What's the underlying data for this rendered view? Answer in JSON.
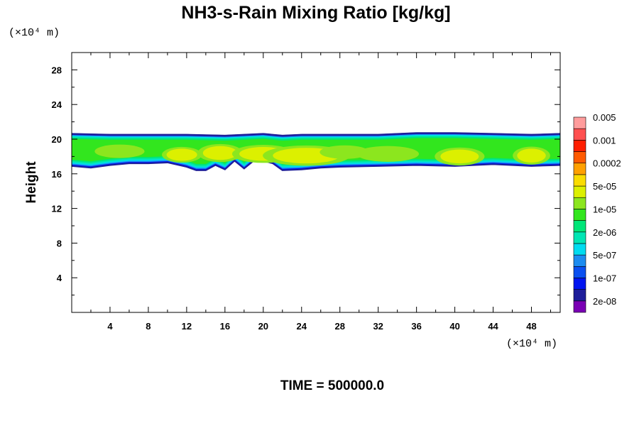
{
  "chart_data": {
    "type": "heatmap",
    "title": "NH3-s-Rain Mixing Ratio [kg/kg]",
    "ylabel": "Height",
    "xlabel": "",
    "x_unit_label": "(×10⁴ m)",
    "y_unit_label": "(×10⁴ m)",
    "xlim": [
      0,
      51
    ],
    "ylim": [
      0,
      30
    ],
    "x_ticks": [
      4,
      8,
      12,
      16,
      20,
      24,
      28,
      32,
      36,
      40,
      44,
      48
    ],
    "y_ticks": [
      4,
      8,
      12,
      16,
      20,
      24,
      28
    ],
    "grid": false,
    "footer": "TIME = 500000.0",
    "colorbar": {
      "placement": "right",
      "colors": [
        "#7a00b4",
        "#1e1e9a",
        "#0014f0",
        "#0a50f0",
        "#1c8cf0",
        "#00dcf0",
        "#00e6b4",
        "#00e678",
        "#32e61e",
        "#8ce61e",
        "#dcf000",
        "#fadc00",
        "#ffa000",
        "#ff5a00",
        "#ff1e00",
        "#ff5050",
        "#ff9c9c"
      ],
      "labels": [
        "2e-08",
        "1e-07",
        "5e-07",
        "2e-06",
        "1e-05",
        "5e-05",
        "0.0002",
        "0.001",
        "0.005"
      ]
    },
    "field": {
      "description_band": "NH3 rain layer",
      "top_profile": {
        "x": [
          0,
          4,
          8,
          12,
          16,
          20,
          22,
          24,
          28,
          32,
          36,
          40,
          44,
          48,
          51
        ],
        "y": [
          20.6,
          20.5,
          20.5,
          20.5,
          20.4,
          20.6,
          20.4,
          20.5,
          20.5,
          20.5,
          20.7,
          20.7,
          20.6,
          20.5,
          20.6
        ]
      },
      "bottom_profile": {
        "x": [
          0,
          2,
          4,
          6,
          8,
          10,
          12,
          13,
          14,
          15,
          16,
          17,
          18,
          19,
          20,
          21,
          22,
          24,
          26,
          28,
          32,
          36,
          40,
          44,
          48,
          51
        ],
        "y": [
          16.9,
          16.7,
          17.0,
          17.2,
          17.2,
          17.3,
          16.8,
          16.4,
          16.4,
          17.0,
          16.5,
          17.5,
          16.6,
          17.5,
          17.5,
          17.2,
          16.4,
          16.5,
          16.7,
          16.8,
          16.9,
          17.0,
          16.9,
          17.1,
          16.9,
          17.0
        ]
      },
      "hotspots": [
        {
          "x": 11.5,
          "y": 18.2,
          "rx": 1.6,
          "ry": 0.7,
          "level": 10
        },
        {
          "x": 15.5,
          "y": 18.4,
          "rx": 1.8,
          "ry": 0.8,
          "level": 10
        },
        {
          "x": 20.0,
          "y": 18.3,
          "rx": 2.5,
          "ry": 0.8,
          "level": 10
        },
        {
          "x": 24.5,
          "y": 18.1,
          "rx": 3.5,
          "ry": 0.9,
          "level": 10
        },
        {
          "x": 28.5,
          "y": 18.5,
          "rx": 2.0,
          "ry": 0.6,
          "level": 9
        },
        {
          "x": 33.0,
          "y": 18.3,
          "rx": 2.5,
          "ry": 0.7,
          "level": 9
        },
        {
          "x": 40.5,
          "y": 18.0,
          "rx": 2.0,
          "ry": 0.8,
          "level": 10
        },
        {
          "x": 48.0,
          "y": 18.1,
          "rx": 1.5,
          "ry": 0.8,
          "level": 10
        },
        {
          "x": 5.0,
          "y": 18.6,
          "rx": 2.0,
          "ry": 0.6,
          "level": 9
        }
      ]
    }
  }
}
